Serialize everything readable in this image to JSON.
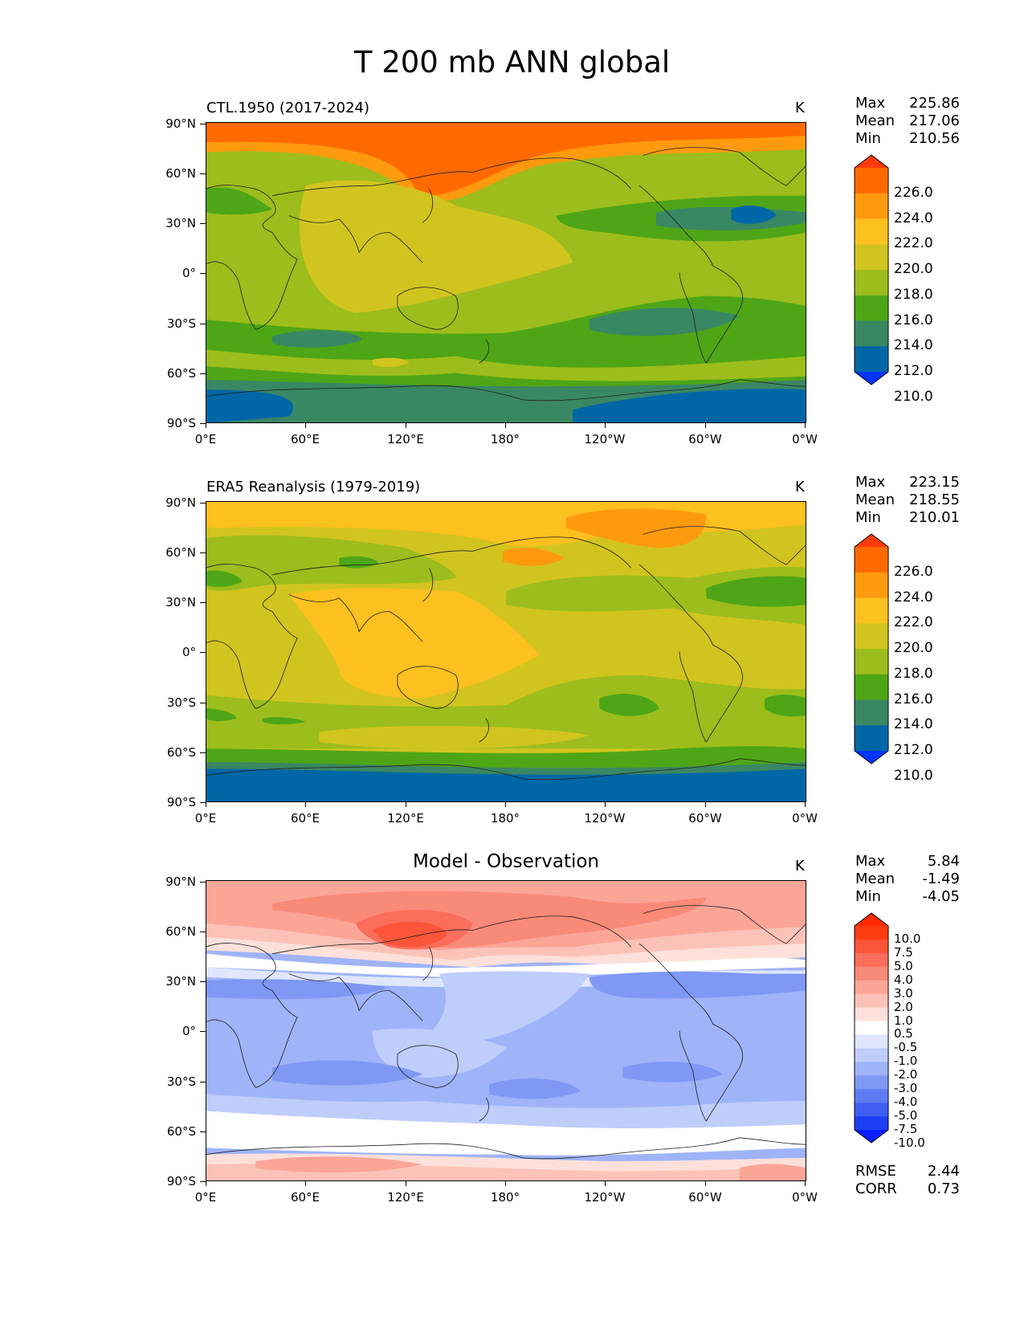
{
  "title": "T 200 mb ANN global",
  "map_axes": {
    "lat_labels": [
      "90°N",
      "60°N",
      "30°N",
      "0°",
      "30°S",
      "60°S",
      "90°S"
    ],
    "lon_labels": [
      "0°E",
      "60°E",
      "120°E",
      "180°",
      "120°W",
      "60°W",
      "0°W"
    ]
  },
  "panels": [
    {
      "title": "CTL.1950 (2017-2024)",
      "title_position": "left",
      "units": "K",
      "stats": {
        "max_label": "Max",
        "max": "225.86",
        "mean_label": "Mean",
        "mean": "217.06",
        "min_label": "Min",
        "min": "210.56"
      },
      "colorbar": {
        "labels": [
          "226.0",
          "224.0",
          "222.0",
          "220.0",
          "218.0",
          "216.0",
          "214.0",
          "212.0",
          "210.0"
        ],
        "colors": [
          "#ff3b0a",
          "#ff6a00",
          "#ff9a0f",
          "#fcc01f",
          "#d2c41f",
          "#9cbd1b",
          "#4ea616",
          "#3a8763",
          "#0067a6",
          "#0035ff"
        ],
        "extend": "both"
      }
    },
    {
      "title": "ERA5 Reanalysis (1979-2019)",
      "title_position": "left",
      "units": "K",
      "stats": {
        "max_label": "Max",
        "max": "223.15",
        "mean_label": "Mean",
        "mean": "218.55",
        "min_label": "Min",
        "min": "210.01"
      },
      "colorbar": {
        "labels": [
          "226.0",
          "224.0",
          "222.0",
          "220.0",
          "218.0",
          "216.0",
          "214.0",
          "212.0",
          "210.0"
        ],
        "colors": [
          "#ff3b0a",
          "#ff6a00",
          "#ff9a0f",
          "#fcc01f",
          "#d2c41f",
          "#9cbd1b",
          "#4ea616",
          "#3a8763",
          "#0067a6",
          "#0035ff"
        ],
        "extend": "both"
      }
    },
    {
      "title": "Model - Observation",
      "title_position": "center",
      "units": "K",
      "stats": {
        "max_label": "Max",
        "max": "5.84",
        "mean_label": "Mean",
        "mean": "-1.49",
        "min_label": "Min",
        "min": "-4.05"
      },
      "colorbar": {
        "labels": [
          "10.0",
          "7.5",
          "5.0",
          "4.0",
          "3.0",
          "2.0",
          "1.0",
          "0.5",
          "-0.5",
          "-1.0",
          "-2.0",
          "-3.0",
          "-4.0",
          "-5.0",
          "-7.5",
          "-10.0"
        ],
        "colors": [
          "#ff2a00",
          "#ff3c14",
          "#fc5539",
          "#fa6e5a",
          "#fa8a78",
          "#fba597",
          "#fcc2b8",
          "#fde0da",
          "#ffffff",
          "#dfe6fd",
          "#bfcdfb",
          "#9fb3f8",
          "#7f98f4",
          "#5f7cf2",
          "#3f5ff2",
          "#1f3ff4",
          "#0a1eff"
        ],
        "extend": "both"
      },
      "footer": {
        "rmse_label": "RMSE",
        "rmse": "2.44",
        "corr_label": "CORR",
        "corr": "0.73"
      }
    }
  ]
}
